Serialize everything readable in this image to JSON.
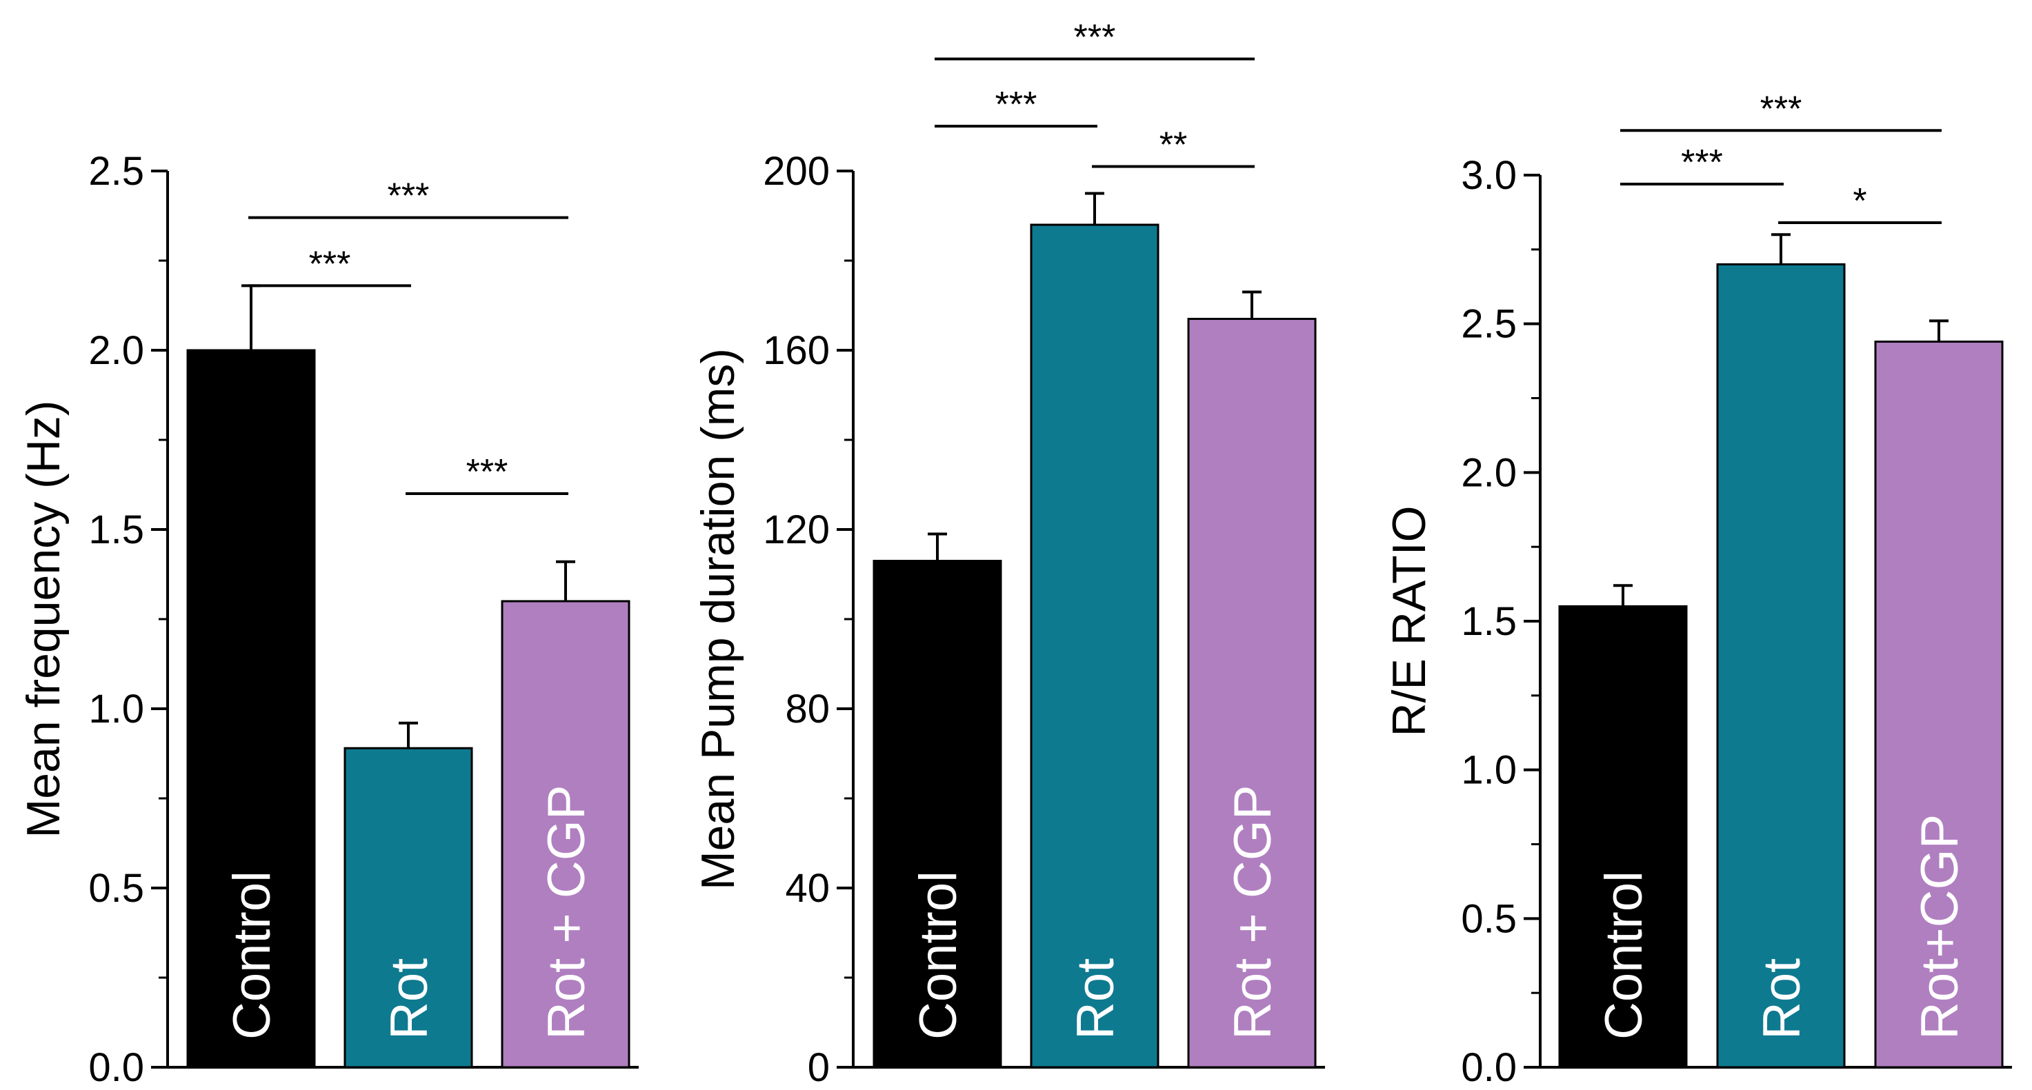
{
  "chart_data": [
    {
      "type": "bar",
      "title": "",
      "xlabel": "",
      "ylabel": "Mean frequency (Hz)",
      "ylim": [
        0,
        2.5
      ],
      "yticks": [
        "0.0",
        "0.5",
        "1.0",
        "1.5",
        "2.0",
        "2.5"
      ],
      "ytick_values": [
        0,
        0.5,
        1.0,
        1.5,
        2.0,
        2.5
      ],
      "categories": [
        "Control",
        "Rot",
        "Rot + CGP"
      ],
      "values": [
        2.0,
        0.89,
        1.3
      ],
      "errors": [
        0.18,
        0.07,
        0.11
      ],
      "colors": [
        "#000000",
        "#0e7a90",
        "#b07fc0"
      ],
      "significance": [
        {
          "from": 0,
          "to": 1,
          "label": "***",
          "level": 2.18
        },
        {
          "from": 0,
          "to": 2,
          "label": "***",
          "level": 2.37
        },
        {
          "from": 1,
          "to": 2,
          "label": "***",
          "level": 1.6
        }
      ]
    },
    {
      "type": "bar",
      "title": "",
      "xlabel": "",
      "ylabel": "Mean Pump duration (ms)",
      "ylim": [
        0,
        200
      ],
      "yticks": [
        "0",
        "40",
        "80",
        "120",
        "160",
        "200"
      ],
      "ytick_values": [
        0,
        40,
        80,
        120,
        160,
        200
      ],
      "categories": [
        "Control",
        "Rot",
        "Rot + CGP"
      ],
      "values": [
        113,
        188,
        167
      ],
      "errors": [
        6,
        7,
        6
      ],
      "colors": [
        "#000000",
        "#0e7a90",
        "#b07fc0"
      ],
      "significance": [
        {
          "from": 0,
          "to": 1,
          "label": "***",
          "level": 210
        },
        {
          "from": 0,
          "to": 2,
          "label": "***",
          "level": 225
        },
        {
          "from": 1,
          "to": 2,
          "label": "**",
          "level": 201
        }
      ]
    },
    {
      "type": "bar",
      "title": "",
      "xlabel": "",
      "ylabel": "R/E RATIO",
      "ylim": [
        0,
        3.0
      ],
      "yticks": [
        "0.0",
        "0.5",
        "1.0",
        "1.5",
        "2.0",
        "2.5",
        "3.0"
      ],
      "ytick_values": [
        0,
        0.5,
        1.0,
        1.5,
        2.0,
        2.5,
        3.0
      ],
      "categories": [
        "Control",
        "Rot",
        "Rot+CGP"
      ],
      "values": [
        1.55,
        2.7,
        2.44
      ],
      "errors": [
        0.07,
        0.1,
        0.07
      ],
      "colors": [
        "#000000",
        "#0e7a90",
        "#b07fc0"
      ],
      "significance": [
        {
          "from": 0,
          "to": 1,
          "label": "***",
          "level": 2.97
        },
        {
          "from": 0,
          "to": 2,
          "label": "***",
          "level": 3.15
        },
        {
          "from": 1,
          "to": 2,
          "label": "*",
          "level": 2.84
        }
      ]
    }
  ]
}
